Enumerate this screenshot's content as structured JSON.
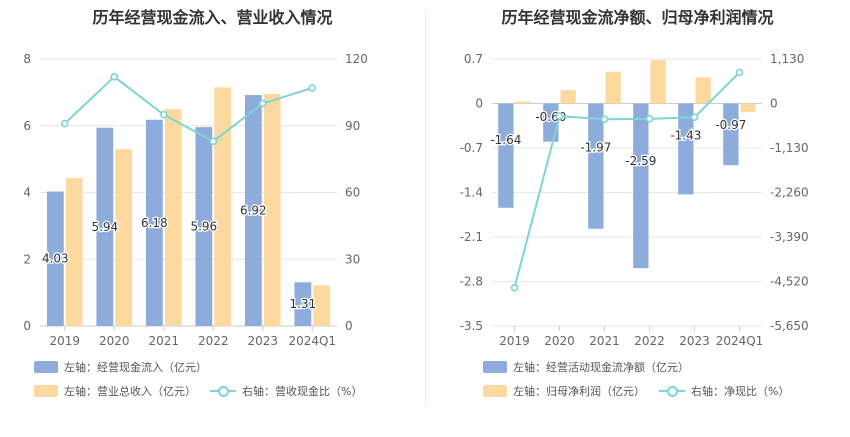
{
  "colors": {
    "bar_blue": "#8eacdb",
    "bar_yellow": "#fdd9a0",
    "line_teal": "#7fd4d4",
    "grid": "#e6e6e6",
    "axis_text": "#666666",
    "title_text": "#333333"
  },
  "chart_data": [
    {
      "type": "bar",
      "title": "历年经营现金流入、营业收入情况",
      "categories": [
        "2019",
        "2020",
        "2021",
        "2022",
        "2023",
        "2024Q1"
      ],
      "left_axis": {
        "ticks": [
          "0",
          "2",
          "4",
          "6",
          "8"
        ],
        "ylim": [
          0,
          8
        ]
      },
      "right_axis": {
        "ticks": [
          "0",
          "30",
          "60",
          "90",
          "120"
        ],
        "ylim": [
          0,
          120
        ]
      },
      "series": [
        {
          "name": "左轴：经营现金流入（亿元）",
          "axis": "left",
          "kind": "bar",
          "color": "#8eacdb",
          "values": [
            4.03,
            5.94,
            6.18,
            5.96,
            6.92,
            1.31
          ],
          "labels": [
            "4.03",
            "5.94",
            "6.18",
            "5.96",
            "6.92",
            "1.31"
          ]
        },
        {
          "name": "左轴：营业总收入（亿元）",
          "axis": "left",
          "kind": "bar",
          "color": "#fdd9a0",
          "values": [
            4.43,
            5.3,
            6.5,
            7.15,
            6.95,
            1.22
          ]
        },
        {
          "name": "右轴：营收现金比（%）",
          "axis": "right",
          "kind": "line",
          "color": "#7fd4d4",
          "values": [
            91,
            112,
            95,
            83,
            100,
            107
          ]
        }
      ]
    },
    {
      "type": "bar",
      "title": "历年经营现金流净额、归母净利润情况",
      "categories": [
        "2019",
        "2020",
        "2021",
        "2022",
        "2023",
        "2024Q1"
      ],
      "left_axis": {
        "ticks": [
          "-3.5",
          "-2.8",
          "-2.1",
          "-1.4",
          "-0.7",
          "0",
          "0.7"
        ],
        "ylim": [
          -3.5,
          0.7
        ]
      },
      "right_axis": {
        "ticks": [
          "-5,650",
          "-4,520",
          "-3,390",
          "-2,260",
          "-1,130",
          "0",
          "1,130"
        ],
        "ylim": [
          -5650,
          1130
        ]
      },
      "series": [
        {
          "name": "左轴：经营活动现金流净额（亿元）",
          "axis": "left",
          "kind": "bar",
          "color": "#8eacdb",
          "values": [
            -1.64,
            -0.6,
            -1.97,
            -2.59,
            -1.43,
            -0.97
          ],
          "labels": [
            "-1.64",
            "-0.60",
            "-1.97",
            "-2.59",
            "-1.43",
            "-0.97"
          ]
        },
        {
          "name": "左轴：归母净利润（亿元）",
          "axis": "left",
          "kind": "bar",
          "color": "#fdd9a0",
          "values": [
            0.03,
            0.21,
            0.5,
            0.68,
            0.41,
            -0.13
          ]
        },
        {
          "name": "右轴：净现比（%）",
          "axis": "right",
          "kind": "line",
          "color": "#7fd4d4",
          "values": [
            -4680,
            -320,
            -400,
            -390,
            -350,
            790
          ]
        }
      ]
    }
  ]
}
